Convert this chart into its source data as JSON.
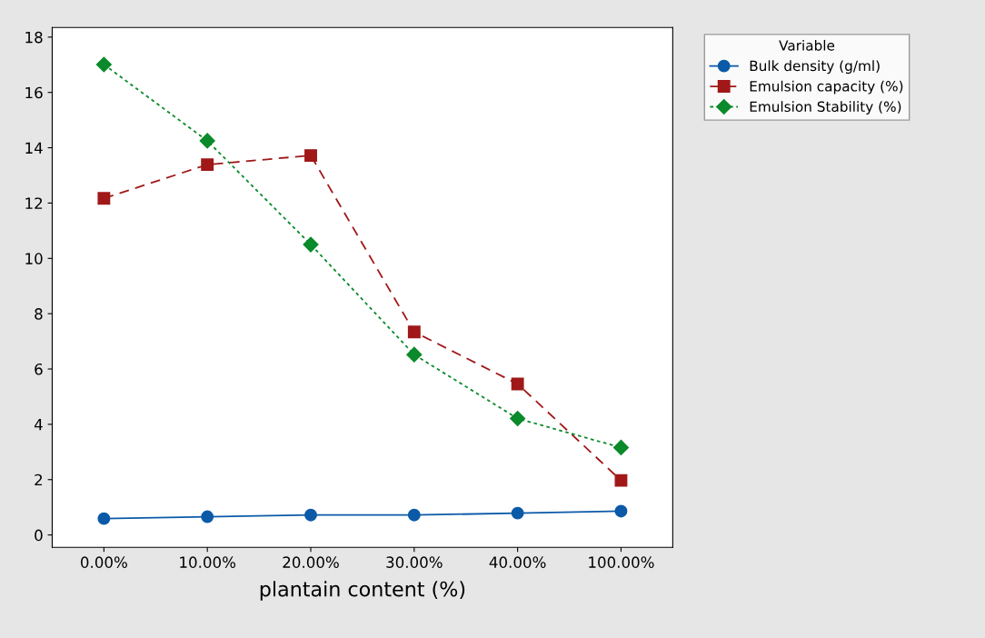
{
  "chart_data": {
    "type": "line",
    "xlabel": "plantain content (%)",
    "legend_title": "Variable",
    "legend": "right",
    "categories": [
      "0.00%",
      "10.00%",
      "20.00%",
      "30.00%",
      "40.00%",
      "100.00%"
    ],
    "ylim": [
      -0.45,
      18.35
    ],
    "yticks": [
      0,
      2,
      4,
      6,
      8,
      10,
      12,
      14,
      16,
      18
    ],
    "grid": false,
    "series": [
      {
        "name": "Bulk density (g/ml)",
        "color": "#0b5aa8",
        "marker": "circle",
        "line_style": "solid",
        "values": [
          0.59,
          0.66,
          0.72,
          0.72,
          0.79,
          0.86
        ]
      },
      {
        "name": "Emulsion capacity (%)",
        "color": "#a01818",
        "marker": "square",
        "line_style": "dashed",
        "values": [
          12.17,
          13.39,
          13.72,
          7.34,
          5.46,
          1.97
        ]
      },
      {
        "name": "Emulsion Stability (%)",
        "color": "#0a8a2a",
        "marker": "diamond",
        "line_style": "dotted",
        "values": [
          17.01,
          14.25,
          10.5,
          6.52,
          4.21,
          3.16
        ]
      }
    ]
  }
}
